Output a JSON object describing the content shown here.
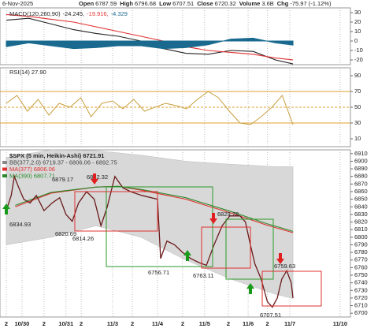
{
  "header": {
    "date": "6-Nov-2025",
    "items": [
      {
        "label": "Open",
        "value": "6787.59"
      },
      {
        "label": "High",
        "value": "6796.68"
      },
      {
        "label": "Low",
        "value": "6707.51"
      },
      {
        "label": "Close",
        "value": "6720.32"
      },
      {
        "label": "Volume",
        "value": "3.6B"
      },
      {
        "label": "Chg",
        "value": "-75.97 (-1.12%)"
      }
    ]
  },
  "chart_data": [
    {
      "type": "macd",
      "label": "MACD(120,260,90)",
      "label_values": [
        "-24.245,",
        "-19.916,",
        "-4.329"
      ],
      "xlim": [
        -0.14,
        7.67
      ],
      "ylim": [
        -25,
        35
      ],
      "yticks": [
        30,
        20,
        10,
        0,
        -10,
        -20
      ],
      "x": [
        0,
        0.5,
        1,
        1.5,
        2,
        2.5,
        3,
        3.5,
        4,
        4.5,
        5,
        5.5,
        6,
        6.39
      ],
      "series": [
        {
          "color": "#222222",
          "values": [
            22,
            24,
            18,
            12,
            8,
            5,
            0,
            -8,
            -13,
            -14,
            -10,
            -11,
            -20,
            -24.245
          ]
        },
        {
          "color": "#e03030",
          "values": [
            28,
            26,
            23,
            20,
            15,
            10,
            5,
            0,
            -6,
            -10,
            -12,
            -14,
            -18,
            -19.916
          ]
        },
        {
          "color": "#1a6a90",
          "kind": "histogram",
          "values": [
            -6,
            -2,
            -5,
            -8,
            -7,
            -5,
            -5,
            -8,
            -7,
            -4,
            2,
            3,
            -2,
            -4.329
          ]
        }
      ]
    },
    {
      "type": "rsi",
      "label": "RSI(14) 27.90",
      "xlim": [
        -0.14,
        7.67
      ],
      "ylim": [
        0,
        100
      ],
      "yticks": [
        90,
        70,
        50,
        30,
        10
      ],
      "levels": [
        70,
        50,
        30
      ],
      "color": "#c8a040",
      "x": [
        0,
        0.24,
        0.47,
        0.71,
        0.95,
        1.18,
        1.42,
        1.66,
        1.89,
        2.13,
        2.37,
        2.6,
        2.84,
        3.08,
        3.31,
        3.55,
        3.79,
        4.02,
        4.26,
        4.5,
        4.73,
        4.97,
        5.21,
        5.44,
        5.68,
        5.92,
        6.15,
        6.39
      ],
      "values": [
        55,
        65,
        45,
        60,
        40,
        55,
        50,
        62,
        38,
        55,
        58,
        48,
        60,
        45,
        50,
        55,
        52,
        48,
        60,
        70,
        62,
        45,
        30,
        28,
        38,
        50,
        65,
        27.9
      ]
    },
    {
      "type": "price",
      "title": "$SPX (5 min, Heikin-Ashi) 6721.91",
      "legend": [
        {
          "text": "BB(377,2.0) 6719.37 - 6806.06 - 6892.75",
          "color": "#888888"
        },
        {
          "text": "MA(377) 6806.06",
          "color": "#e03030"
        },
        {
          "text": "MA(390) 6807.71",
          "color": "#2a8a2a"
        }
      ],
      "xlim": [
        -0.14,
        7.67
      ],
      "ylim": [
        6695,
        6915
      ],
      "yticks": [
        6910,
        6900,
        6890,
        6880,
        6870,
        6860,
        6850,
        6840,
        6830,
        6820,
        6810,
        6800,
        6790,
        6780,
        6770,
        6760,
        6750,
        6740,
        6730,
        6720,
        6710,
        6700
      ],
      "xticks": [
        {
          "value": 0,
          "label": "2"
        },
        {
          "value": 0.35,
          "label": "10/30"
        },
        {
          "value": 0.84,
          "label": "2"
        },
        {
          "value": 1.33,
          "label": "10/31"
        },
        {
          "value": 1.67,
          "label": "2"
        },
        {
          "value": 2.37,
          "label": "11/3"
        },
        {
          "value": 2.81,
          "label": "2"
        },
        {
          "value": 3.37,
          "label": "11/4"
        },
        {
          "value": 3.93,
          "label": "2"
        },
        {
          "value": 4.42,
          "label": "11/5"
        },
        {
          "value": 4.95,
          "label": "2"
        },
        {
          "value": 5.39,
          "label": "11/6"
        },
        {
          "value": 5.82,
          "label": "2"
        },
        {
          "value": 6.32,
          "label": "11/7"
        },
        {
          "value": 7.44,
          "label": "11/10"
        }
      ],
      "band": {
        "color": "#d8d8d8",
        "x": [
          0,
          1,
          2,
          3,
          4,
          5,
          6,
          6.39
        ],
        "upper": [
          6905,
          6915,
          6914,
          6908,
          6900,
          6896,
          6893,
          6892.75
        ],
        "lower": [
          6790,
          6800,
          6815,
          6800,
          6770,
          6745,
          6725,
          6719.37
        ]
      },
      "series": [
        {
          "color": "#e03030",
          "x": [
            0.2,
            1,
            2,
            2.5,
            3,
            4,
            5,
            5.8,
            6.39
          ],
          "values": [
            6840,
            6858,
            6866,
            6867,
            6862,
            6850,
            6832,
            6816,
            6806.06
          ]
        },
        {
          "color": "#2a8a2a",
          "x": [
            0.2,
            1,
            2,
            2.5,
            3,
            4,
            5,
            5.8,
            6.39
          ],
          "values": [
            6842,
            6859,
            6866,
            6867,
            6863,
            6852,
            6834,
            6818,
            6807.71
          ]
        },
        {
          "color": "#6a1a1a",
          "x": [
            0,
            0.11,
            0.18,
            0.28,
            0.39,
            0.53,
            0.67,
            0.84,
            1.02,
            1.19,
            1.33,
            1.47,
            1.61,
            1.79,
            1.96,
            2.11,
            2.25,
            2.42,
            2.6,
            2.77,
            3.02,
            3.37,
            3.44,
            3.58,
            3.75,
            3.93,
            4.11,
            4.28,
            4.46,
            4.63,
            4.81,
            4.98,
            5.21,
            5.33,
            5.44,
            5.54,
            5.68,
            5.82,
            5.93,
            6.04,
            6.14,
            6.25,
            6.35,
            6.39
          ],
          "values": [
            6835,
            6855,
            6880,
            6865,
            6850,
            6845,
            6855,
            6835,
            6845,
            6852,
            6830,
            6821,
            6845,
            6860,
            6850,
            6815,
            6840,
            6880,
            6865,
            6860,
            6855,
            6850,
            6772,
            6795,
            6790,
            6780,
            6772,
            6767,
            6763,
            6790,
            6815,
            6828,
            6828,
            6820,
            6790,
            6765,
            6745,
            6715,
            6708,
            6720,
            6745,
            6756,
            6740,
            6720
          ]
        }
      ],
      "annotations": [
        "6834.93",
        "6879.17",
        "6882.32",
        "6820.69",
        "6814.26",
        "6829.78",
        "6763.11",
        "6756.71",
        "6759.63",
        "6707.51"
      ]
    }
  ]
}
